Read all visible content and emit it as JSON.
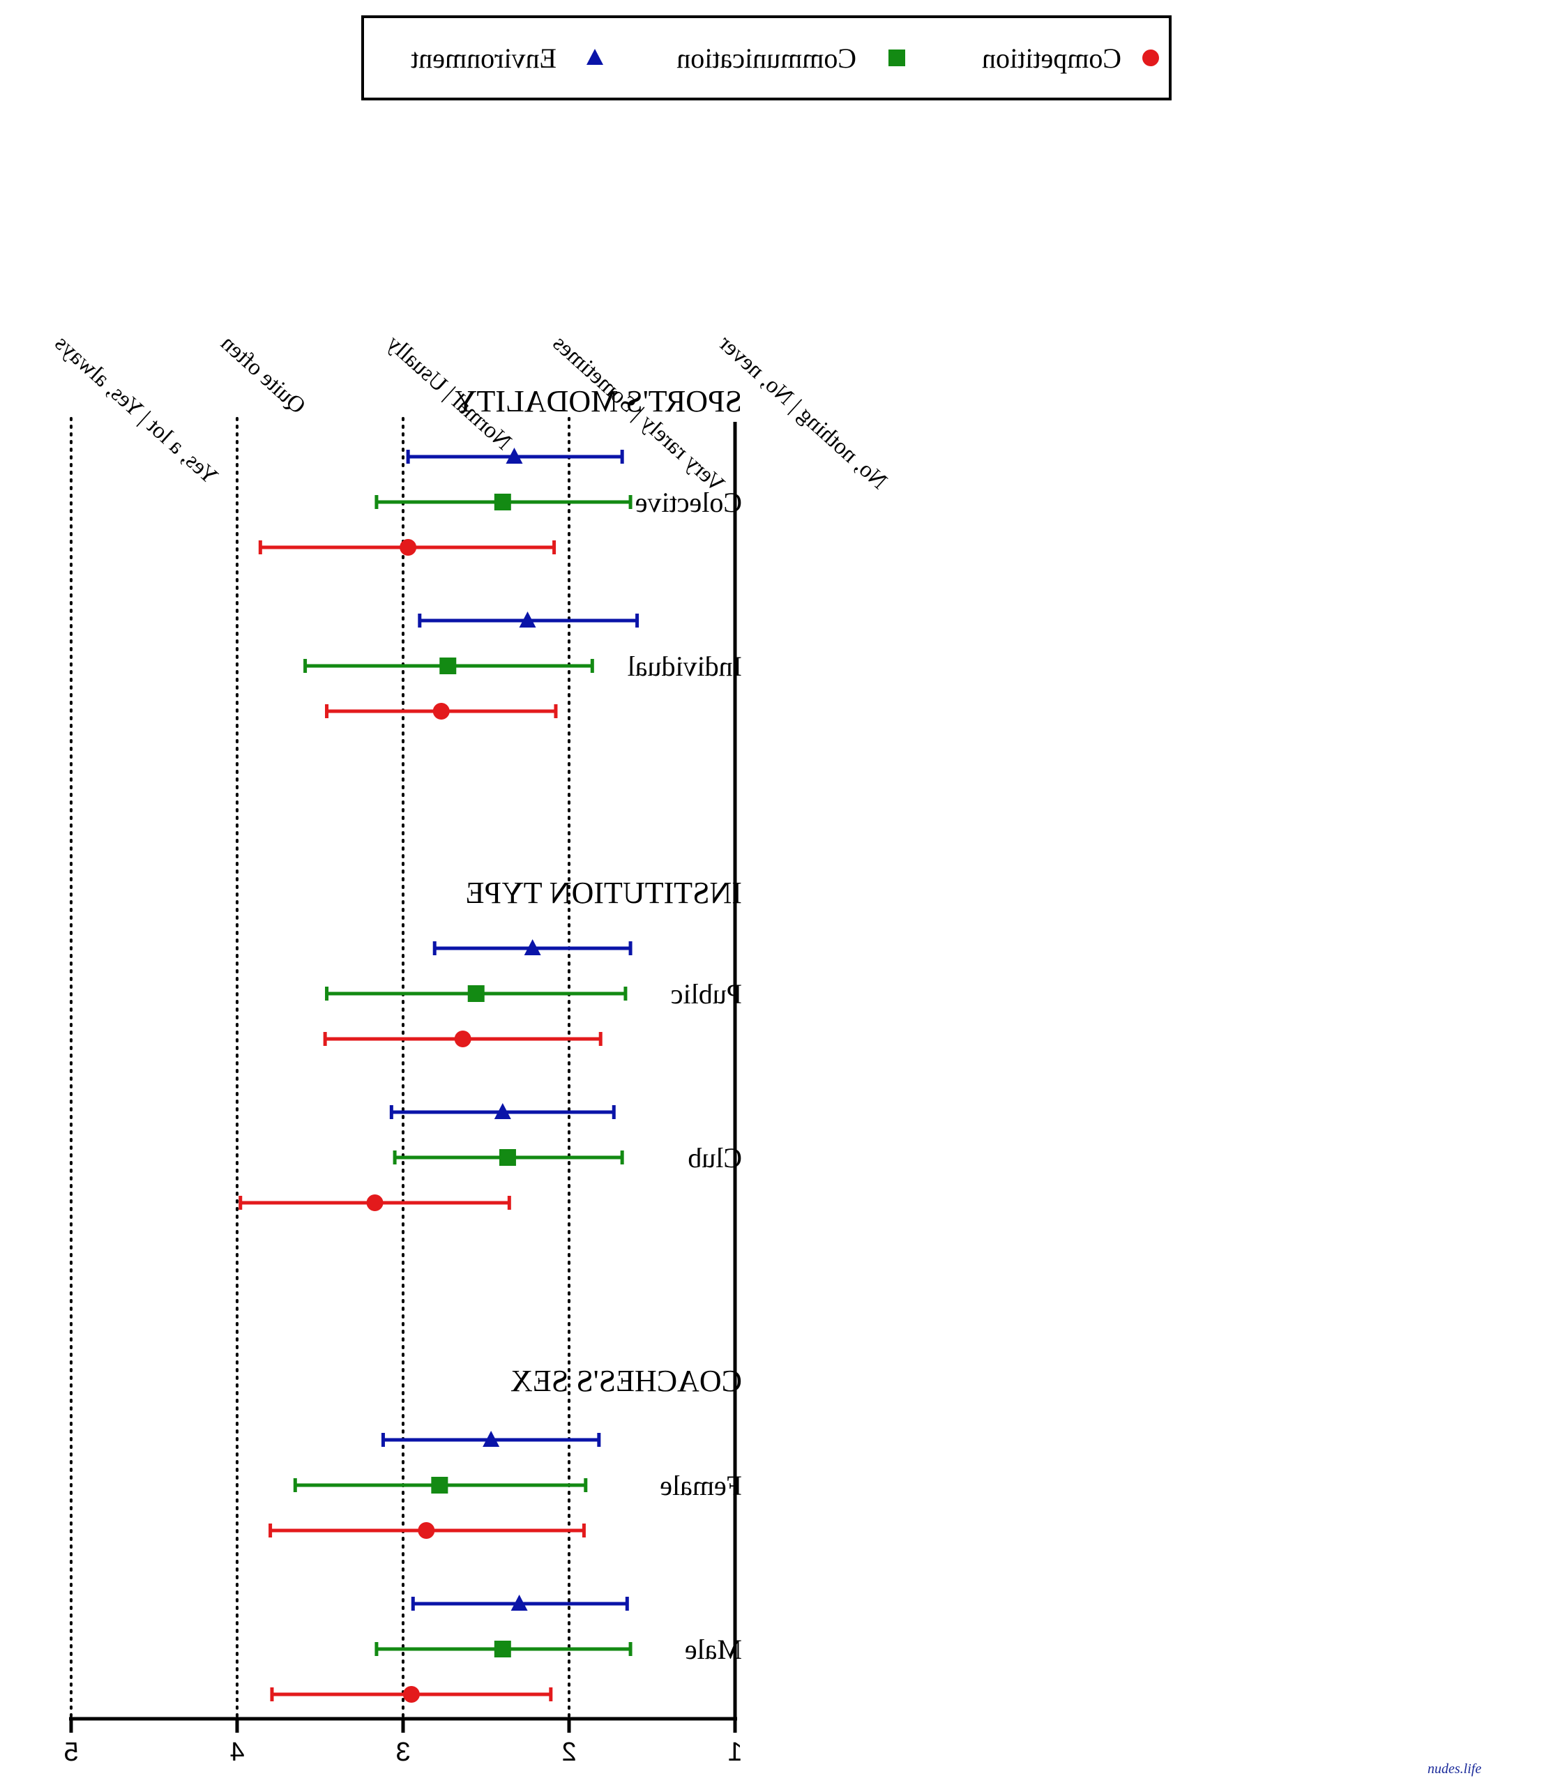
{
  "chart_data": {
    "type": "errorbar",
    "orientation": "horizontal",
    "x_axis": {
      "ticks": [
        5,
        4,
        3,
        2,
        1
      ],
      "xlim": [
        1,
        5
      ],
      "reversed": true,
      "mirrored": true,
      "gridlines": [
        5,
        4,
        3,
        2
      ]
    },
    "scale_labels": [
      {
        "value": 5,
        "text": "Yes, a lot | Yes, always"
      },
      {
        "value": 4,
        "text": "Quite often"
      },
      {
        "value": 3,
        "text": "Normal | Usually"
      },
      {
        "value": 2,
        "text": "Very rarely | Sometimes"
      },
      {
        "value": 1,
        "text": "No, nothing | No, never"
      }
    ],
    "legend": {
      "placement": "top",
      "entries": [
        {
          "name": "Competition",
          "marker": "circle",
          "color": "#e31a1c"
        },
        {
          "name": "Communication",
          "marker": "square",
          "color": "#138a13"
        },
        {
          "name": "Environment",
          "marker": "triangle",
          "color": "#0a14a8"
        }
      ]
    },
    "groups": [
      {
        "title": "SPORT'S MODALITY",
        "categories": [
          {
            "label": "Colective",
            "series": [
              {
                "name": "Environment",
                "mean": 2.33,
                "low": 1.68,
                "high": 2.97
              },
              {
                "name": "Communication",
                "mean": 2.4,
                "low": 1.63,
                "high": 3.16
              },
              {
                "name": "Competition",
                "mean": 2.97,
                "low": 2.09,
                "high": 3.86
              }
            ]
          },
          {
            "label": "Individual",
            "series": [
              {
                "name": "Environment",
                "mean": 2.25,
                "low": 1.59,
                "high": 2.9
              },
              {
                "name": "Communication",
                "mean": 2.73,
                "low": 1.86,
                "high": 3.59
              },
              {
                "name": "Competition",
                "mean": 2.77,
                "low": 2.08,
                "high": 3.46
              }
            ]
          }
        ]
      },
      {
        "title": "INSTITUTION TYPE",
        "categories": [
          {
            "label": "Public",
            "series": [
              {
                "name": "Environment",
                "mean": 2.22,
                "low": 1.63,
                "high": 2.81
              },
              {
                "name": "Communication",
                "mean": 2.56,
                "low": 1.66,
                "high": 3.46
              },
              {
                "name": "Competition",
                "mean": 2.64,
                "low": 1.81,
                "high": 3.47
              }
            ]
          },
          {
            "label": "Club",
            "series": [
              {
                "name": "Environment",
                "mean": 2.4,
                "low": 1.73,
                "high": 3.07
              },
              {
                "name": "Communication",
                "mean": 2.37,
                "low": 1.68,
                "high": 3.05
              },
              {
                "name": "Competition",
                "mean": 3.17,
                "low": 2.36,
                "high": 3.98
              }
            ]
          }
        ]
      },
      {
        "title": "COACHES'S SEX",
        "categories": [
          {
            "label": "Female",
            "series": [
              {
                "name": "Environment",
                "mean": 2.47,
                "low": 1.82,
                "high": 3.12
              },
              {
                "name": "Communication",
                "mean": 2.78,
                "low": 1.9,
                "high": 3.65
              },
              {
                "name": "Competition",
                "mean": 2.86,
                "low": 1.91,
                "high": 3.8
              }
            ]
          },
          {
            "label": "Male",
            "series": [
              {
                "name": "Environment",
                "mean": 2.3,
                "low": 1.65,
                "high": 2.94
              },
              {
                "name": "Communication",
                "mean": 2.4,
                "low": 1.63,
                "high": 3.16
              },
              {
                "name": "Competition",
                "mean": 2.95,
                "low": 2.11,
                "high": 3.79
              }
            ]
          }
        ]
      }
    ]
  },
  "watermark": "nudes.life"
}
